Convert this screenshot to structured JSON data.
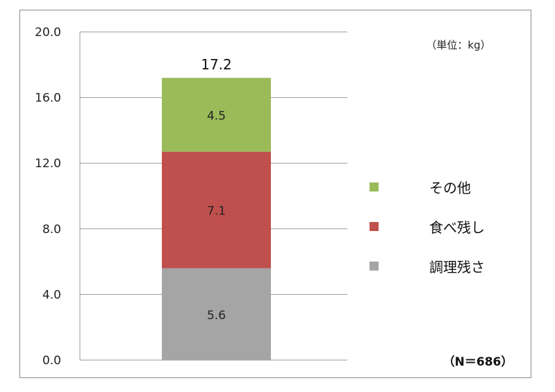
{
  "chart_data": {
    "type": "bar",
    "stacked": true,
    "ylim": [
      0,
      20
    ],
    "yticks": [
      "0.0",
      "4.0",
      "8.0",
      "12.0",
      "16.0",
      "20.0"
    ],
    "grid": true,
    "unit_label": "（単位：kg）",
    "sample_note": "（N＝686）",
    "total": 17.2,
    "total_label": "17.2",
    "legend_position": "right",
    "series": [
      {
        "name": "調理残さ",
        "value": 5.6,
        "label": "5.6",
        "color": "#a5a5a5"
      },
      {
        "name": "食べ残し",
        "value": 7.1,
        "label": "7.1",
        "color": "#c0504d"
      },
      {
        "name": "その他",
        "value": 4.5,
        "label": "4.5",
        "color": "#9bbb59"
      }
    ],
    "legend": [
      {
        "name": "その他",
        "color": "#9bbb59"
      },
      {
        "name": "食べ残し",
        "color": "#c0504d"
      },
      {
        "name": "調理残さ",
        "color": "#a5a5a5"
      }
    ]
  }
}
